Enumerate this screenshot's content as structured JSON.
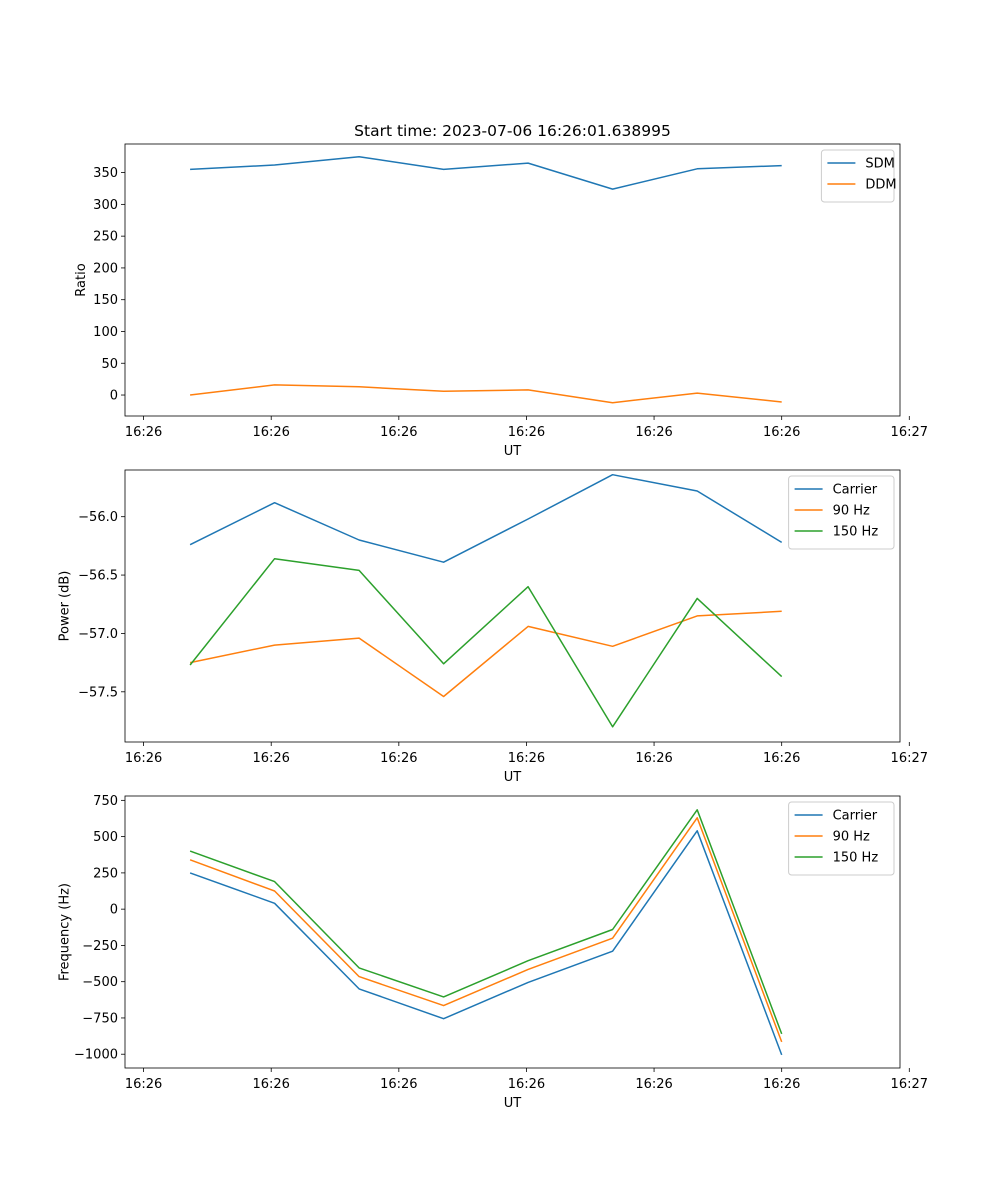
{
  "figure_title": "Start time: 2023-07-06 16:26:01.638995",
  "chart_data": [
    {
      "type": "line",
      "title": "Start time: 2023-07-06 16:26:01.638995",
      "xlabel": "UT",
      "ylabel": "Ratio",
      "x": [
        1,
        2,
        3,
        4,
        5,
        6,
        7,
        8
      ],
      "xlim": [
        0.23,
        9.4
      ],
      "ylim": [
        -33,
        395
      ],
      "xticks": [
        0.45,
        1.96,
        3.47,
        4.98,
        6.49,
        8.0,
        9.51
      ],
      "xtick_labels": [
        "16:26",
        "16:26",
        "16:26",
        "16:26",
        "16:26",
        "16:26",
        "16:27"
      ],
      "yticks": [
        0,
        50,
        100,
        150,
        200,
        250,
        300,
        350
      ],
      "ytick_labels": [
        "0",
        "50",
        "100",
        "150",
        "200",
        "250",
        "300",
        "350"
      ],
      "legend": "top-right",
      "series": [
        {
          "name": "SDM",
          "color": "#1f77b4",
          "values": [
            355,
            362,
            375,
            355,
            365,
            324,
            356,
            361
          ]
        },
        {
          "name": "DDM",
          "color": "#ff7f0e",
          "values": [
            0,
            16,
            13,
            6,
            8,
            -12,
            3,
            -11
          ]
        }
      ]
    },
    {
      "type": "line",
      "title": "",
      "xlabel": "UT",
      "ylabel": "Power (dB)",
      "x": [
        1,
        2,
        3,
        4,
        5,
        6,
        7,
        8
      ],
      "xlim": [
        0.23,
        9.4
      ],
      "ylim": [
        -57.93,
        -55.6
      ],
      "xticks": [
        0.45,
        1.96,
        3.47,
        4.98,
        6.49,
        8.0,
        9.51
      ],
      "xtick_labels": [
        "16:26",
        "16:26",
        "16:26",
        "16:26",
        "16:26",
        "16:26",
        "16:27"
      ],
      "yticks": [
        -57.5,
        -57.0,
        -56.5,
        -56.0
      ],
      "ytick_labels": [
        "−57.5",
        "−57.0",
        "−56.5",
        "−56.0"
      ],
      "legend": "top-right",
      "series": [
        {
          "name": "Carrier",
          "color": "#1f77b4",
          "values": [
            -56.24,
            -55.88,
            -56.2,
            -56.39,
            -56.02,
            -55.64,
            -55.78,
            -56.22
          ]
        },
        {
          "name": "90 Hz",
          "color": "#ff7f0e",
          "values": [
            -57.25,
            -57.1,
            -57.04,
            -57.54,
            -56.94,
            -57.11,
            -56.85,
            -56.81
          ]
        },
        {
          "name": "150 Hz",
          "color": "#2ca02c",
          "values": [
            -57.27,
            -56.36,
            -56.46,
            -57.26,
            -56.6,
            -57.8,
            -56.7,
            -57.37
          ]
        }
      ]
    },
    {
      "type": "line",
      "title": "",
      "xlabel": "UT",
      "ylabel": "Frequency (Hz)",
      "x": [
        1,
        2,
        3,
        4,
        5,
        6,
        7,
        8
      ],
      "xlim": [
        0.23,
        9.4
      ],
      "ylim": [
        -1095,
        780
      ],
      "xticks": [
        0.45,
        1.96,
        3.47,
        4.98,
        6.49,
        8.0,
        9.51
      ],
      "xtick_labels": [
        "16:26",
        "16:26",
        "16:26",
        "16:26",
        "16:26",
        "16:26",
        "16:27"
      ],
      "yticks": [
        -1000,
        -750,
        -500,
        -250,
        0,
        250,
        500,
        750
      ],
      "ytick_labels": [
        "−1000",
        "−750",
        "−500",
        "−250",
        "0",
        "250",
        "500",
        "750"
      ],
      "legend": "top-right",
      "series": [
        {
          "name": "Carrier",
          "color": "#1f77b4",
          "values": [
            250,
            40,
            -550,
            -755,
            -505,
            -290,
            540,
            -1005
          ]
        },
        {
          "name": "90 Hz",
          "color": "#ff7f0e",
          "values": [
            340,
            125,
            -465,
            -665,
            -415,
            -200,
            630,
            -915
          ]
        },
        {
          "name": "150 Hz",
          "color": "#2ca02c",
          "values": [
            400,
            190,
            -405,
            -605,
            -355,
            -140,
            685,
            -860
          ]
        }
      ]
    }
  ]
}
